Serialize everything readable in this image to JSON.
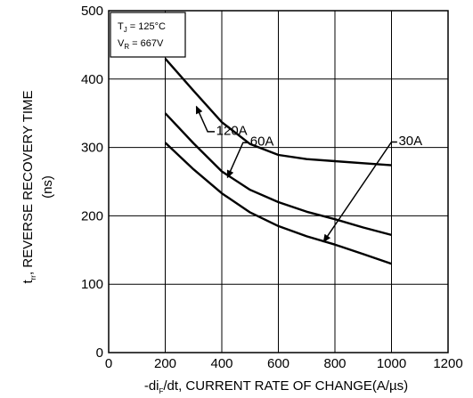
{
  "chart_data": {
    "type": "line",
    "xlabel": {
      "prefix": "-di",
      "sub": "F",
      "rest": "/dt, CURRENT RATE OF CHANGE(A/µs)"
    },
    "ylabel": {
      "pre": "t",
      "sub": "rr",
      "rest": ", REVERSE RECOVERY TIME",
      "unit": "(ns)"
    },
    "xlim": [
      0,
      1200
    ],
    "ylim": [
      0,
      500
    ],
    "x_ticks": [
      "0",
      "200",
      "400",
      "600",
      "800",
      "1000",
      "1200"
    ],
    "y_ticks": [
      "0",
      "100",
      "200",
      "300",
      "400",
      "500"
    ],
    "grid": true,
    "conditions": {
      "tj_pre": "T",
      "tj_sub": "J",
      "tj_val": " = 125°C",
      "vr_pre": "V",
      "vr_sub": "R",
      "vr_val": " = 667V"
    },
    "series": [
      {
        "name": "120A",
        "x": [
          200,
          300,
          400,
          500,
          600,
          700,
          800,
          900,
          1000
        ],
        "y": [
          430,
          383,
          337,
          305,
          289,
          283,
          280,
          277,
          274
        ]
      },
      {
        "name": "60A",
        "x": [
          200,
          300,
          400,
          500,
          600,
          700,
          800,
          900,
          1000
        ],
        "y": [
          350,
          306,
          265,
          238,
          220,
          206,
          195,
          183,
          172
        ]
      },
      {
        "name": "30A",
        "x": [
          200,
          300,
          400,
          500,
          600,
          700,
          800,
          900,
          1000
        ],
        "y": [
          307,
          268,
          233,
          205,
          185,
          170,
          158,
          144,
          130
        ]
      }
    ]
  }
}
